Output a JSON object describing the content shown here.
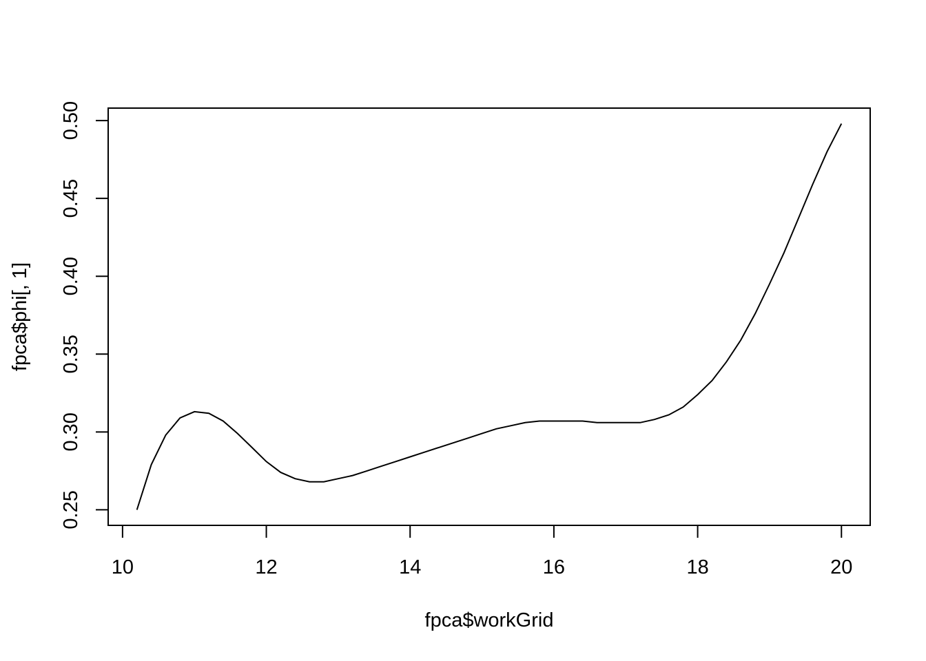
{
  "chart_data": {
    "type": "line",
    "title": "",
    "xlabel": "fpca$workGrid",
    "ylabel": "fpca$phi[, 1]",
    "xlim": [
      9.8,
      20.4
    ],
    "ylim": [
      0.24,
      0.508
    ],
    "x_ticks": [
      {
        "value": 10,
        "label": "10"
      },
      {
        "value": 12,
        "label": "12"
      },
      {
        "value": 14,
        "label": "14"
      },
      {
        "value": 16,
        "label": "16"
      },
      {
        "value": 18,
        "label": "18"
      },
      {
        "value": 20,
        "label": "20"
      }
    ],
    "y_ticks": [
      {
        "value": 0.25,
        "label": "0.25"
      },
      {
        "value": 0.3,
        "label": "0.30"
      },
      {
        "value": 0.35,
        "label": "0.35"
      },
      {
        "value": 0.4,
        "label": "0.40"
      },
      {
        "value": 0.45,
        "label": "0.45"
      },
      {
        "value": 0.5,
        "label": "0.50"
      }
    ],
    "grid": false,
    "color": "#000000",
    "x": [
      10.2,
      10.4,
      10.6,
      10.8,
      11.0,
      11.2,
      11.4,
      11.6,
      11.8,
      12.0,
      12.2,
      12.4,
      12.6,
      12.8,
      13.0,
      13.2,
      13.4,
      13.6,
      13.8,
      14.0,
      14.2,
      14.4,
      14.6,
      14.8,
      15.0,
      15.2,
      15.4,
      15.6,
      15.8,
      16.0,
      16.2,
      16.4,
      16.6,
      16.8,
      17.0,
      17.2,
      17.4,
      17.6,
      17.8,
      18.0,
      18.2,
      18.4,
      18.6,
      18.8,
      19.0,
      19.2,
      19.4,
      19.6,
      19.8,
      20.0
    ],
    "y": [
      0.25,
      0.279,
      0.298,
      0.309,
      0.313,
      0.312,
      0.307,
      0.299,
      0.29,
      0.281,
      0.274,
      0.27,
      0.268,
      0.268,
      0.27,
      0.272,
      0.275,
      0.278,
      0.281,
      0.284,
      0.287,
      0.29,
      0.293,
      0.296,
      0.299,
      0.302,
      0.304,
      0.306,
      0.307,
      0.307,
      0.307,
      0.307,
      0.306,
      0.306,
      0.306,
      0.306,
      0.308,
      0.311,
      0.316,
      0.324,
      0.333,
      0.345,
      0.359,
      0.376,
      0.395,
      0.415,
      0.437,
      0.459,
      0.48,
      0.498
    ]
  }
}
